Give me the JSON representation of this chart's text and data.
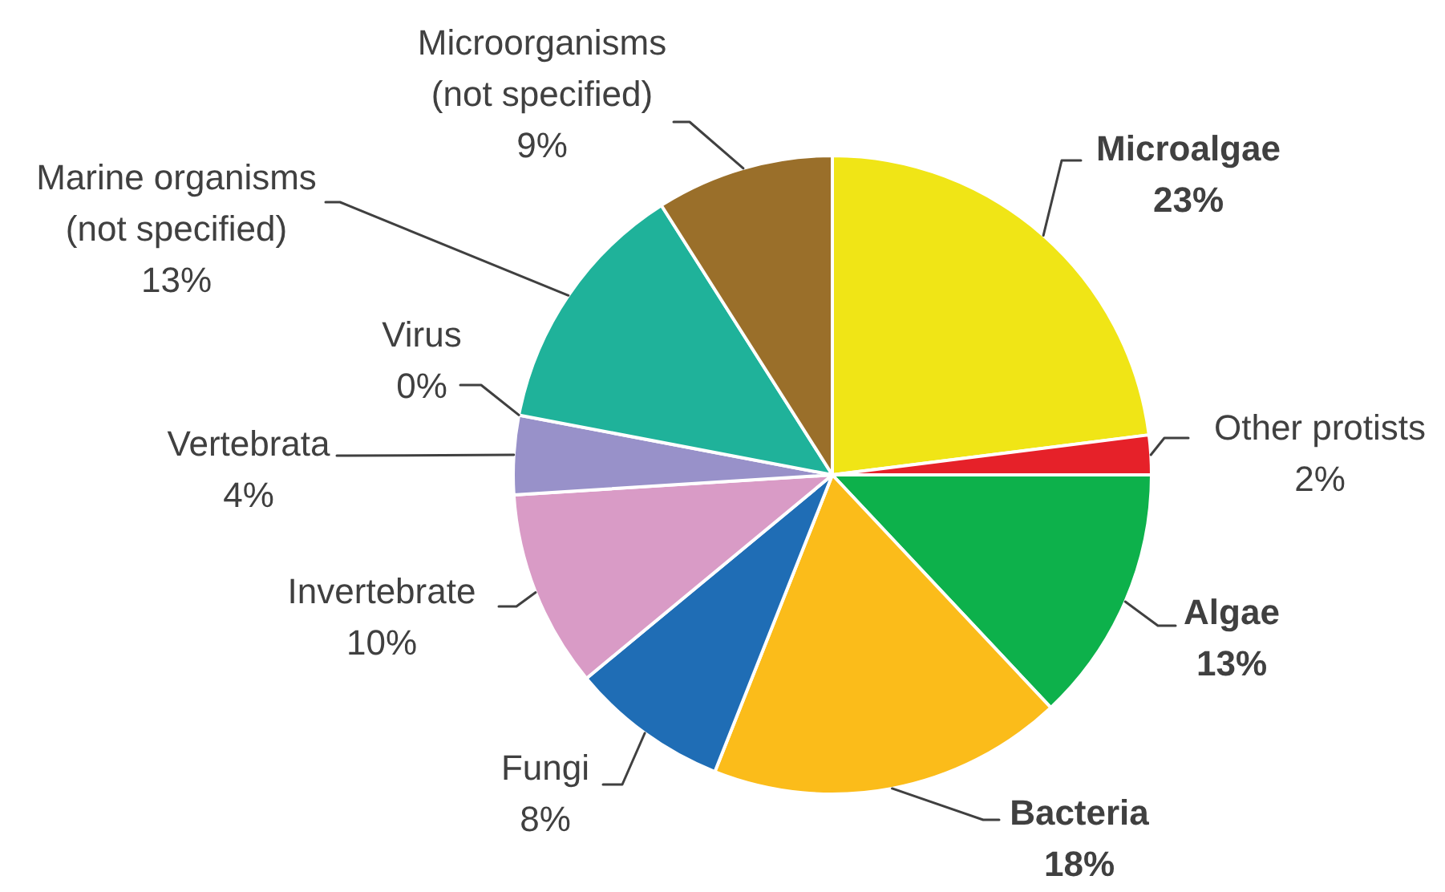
{
  "chart_data": {
    "type": "pie",
    "categories": [
      "Microalgae",
      "Other protists",
      "Algae",
      "Bacteria",
      "Fungi",
      "Invertebrate",
      "Vertebrata",
      "Virus",
      "Marine organisms (not specified)",
      "Microorganisms (not specified)"
    ],
    "values": [
      23,
      2,
      13,
      18,
      8,
      10,
      4,
      0,
      13,
      9
    ],
    "colors": [
      "#f0e516",
      "#e62129",
      "#0db14b",
      "#fbbc1a",
      "#1f6db5",
      "#d99bc6",
      "#9891c9",
      "#808080",
      "#1fb29a",
      "#9a6f2a"
    ],
    "value_labels": [
      "23%",
      "2%",
      "13%",
      "18%",
      "8%",
      "10%",
      "4%",
      "0%",
      "13%",
      "9%"
    ]
  }
}
